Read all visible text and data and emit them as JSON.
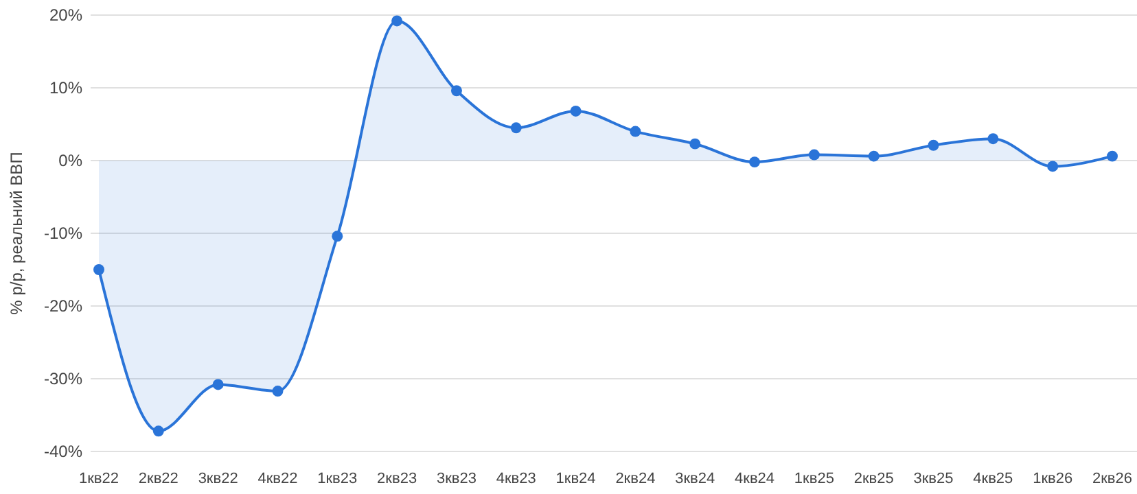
{
  "chart_data": {
    "type": "area",
    "ylabel": "% р/р, реальний ВВП",
    "categories": [
      "1кв22",
      "2кв22",
      "3кв22",
      "4кв22",
      "1кв23",
      "2кв23",
      "3кв23",
      "4кв23",
      "1кв24",
      "2кв24",
      "3кв24",
      "4кв24",
      "1кв25",
      "2кв25",
      "3кв25",
      "4кв25",
      "1кв26",
      "2кв26"
    ],
    "series": [
      {
        "color": "#2a74d8",
        "values": [
          -15,
          -37.2,
          -30.8,
          -31.7,
          -10.4,
          19.2,
          9.6,
          4.5,
          6.8,
          4.0,
          2.3,
          -0.2,
          0.8,
          0.6,
          2.1,
          3.0,
          -0.8,
          0.6
        ]
      }
    ],
    "ylim": [
      -40,
      20
    ],
    "yticks": [
      {
        "value": -40,
        "label": "-40%"
      },
      {
        "value": -30,
        "label": "-30%"
      },
      {
        "value": -20,
        "label": "-20%"
      },
      {
        "value": -10,
        "label": "-10%"
      },
      {
        "value": 0,
        "label": "0%"
      },
      {
        "value": 10,
        "label": "10%"
      },
      {
        "value": 20,
        "label": "20%"
      }
    ],
    "grid": "y",
    "marker": "circle"
  }
}
